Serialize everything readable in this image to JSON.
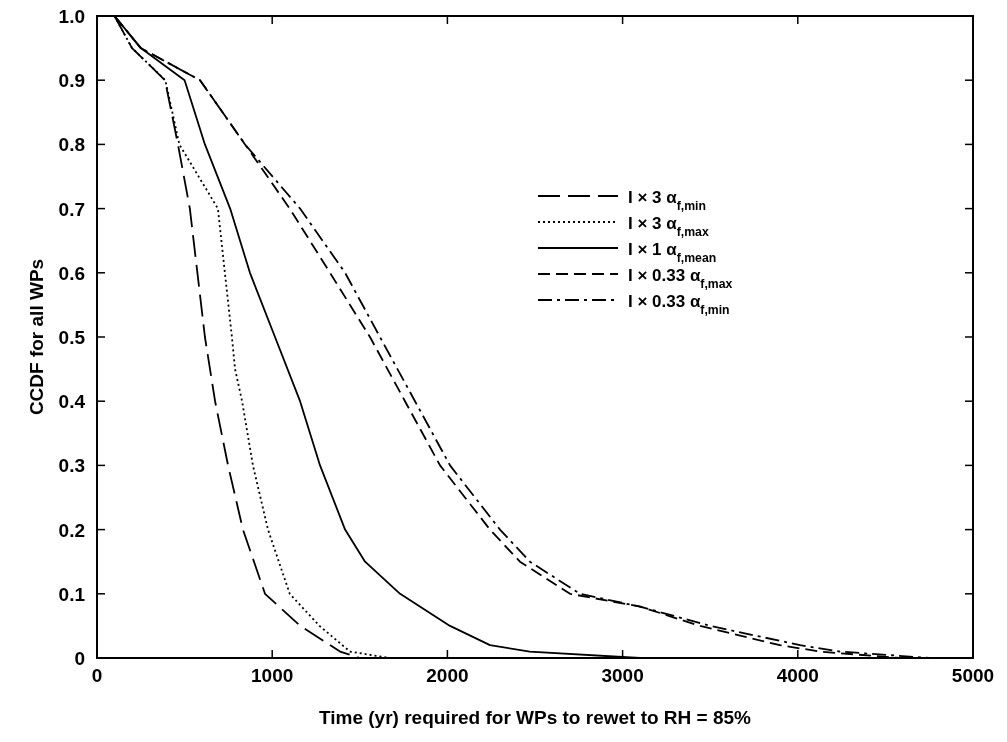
{
  "chart_data": {
    "type": "line",
    "xlabel": "Time (yr) required for WPs to rewet to RH = 85%",
    "ylabel": "CCDF for all WPs",
    "xlim": [
      0,
      5000
    ],
    "ylim": [
      0,
      1
    ],
    "xticks": [
      0,
      1000,
      2000,
      3000,
      4000,
      5000
    ],
    "yticks": [
      0,
      0.1,
      0.2,
      0.3,
      0.4,
      0.5,
      0.6,
      0.7,
      0.8,
      0.9,
      {
        "value": 1,
        "label": "1.0"
      }
    ],
    "grid": false,
    "legend": "right",
    "series": [
      {
        "name": "I × 3 α$_{f,min}$",
        "color": "#000000",
        "line_style": "longdash",
        "x": [
          100,
          200,
          388,
          462,
          530,
          616,
          674,
          748,
          833,
          959,
          1160,
          1387,
          1500
        ],
        "values": [
          1,
          0.95,
          0.9,
          0.8,
          0.7,
          0.5,
          0.4,
          0.3,
          0.2,
          0.1,
          0.05,
          0.01,
          0
        ]
      },
      {
        "name": "I × 3 α$_{f,max}$",
        "color": "#000000",
        "line_style": "dotted",
        "x": [
          100,
          200,
          390,
          470,
          690,
          730,
          770,
          788,
          828,
          890,
          976,
          1100,
          1270,
          1444,
          1670
        ],
        "values": [
          1,
          0.95,
          0.9,
          0.8,
          0.7,
          0.6,
          0.5,
          0.45,
          0.4,
          0.3,
          0.2,
          0.1,
          0.05,
          0.01,
          0
        ]
      },
      {
        "name": "I × 1 α$_{f,mean}$",
        "color": "#000000",
        "line_style": "solid",
        "x": [
          100,
          250,
          500,
          616,
          760,
          873,
          1016,
          1159,
          1273,
          1416,
          1530,
          1730,
          2015,
          2243,
          2470,
          3100
        ],
        "values": [
          1,
          0.95,
          0.9,
          0.8,
          0.7,
          0.6,
          0.5,
          0.4,
          0.3,
          0.2,
          0.15,
          0.1,
          0.05,
          0.02,
          0.01,
          0
        ]
      },
      {
        "name": "I × 0.33 α$_{f,max}$",
        "color": "#000000",
        "line_style": "dashed",
        "x": [
          100,
          250,
          588,
          845,
          1100,
          1330,
          1558,
          1758,
          1958,
          2243,
          2414,
          2700,
          3100,
          3442,
          3898,
          4127,
          4580
        ],
        "values": [
          1,
          0.95,
          0.9,
          0.8,
          0.7,
          0.6,
          0.5,
          0.4,
          0.3,
          0.2,
          0.15,
          0.1,
          0.08,
          0.05,
          0.02,
          0.01,
          0
        ]
      },
      {
        "name": "I × 0.33 α$_{f,min}$",
        "color": "#000000",
        "line_style": "dashdot",
        "x": [
          100,
          250,
          588,
          845,
          1159,
          1416,
          1615,
          1815,
          2015,
          2300,
          2471,
          2757,
          3100,
          3500,
          4013,
          4241,
          4750
        ],
        "values": [
          1,
          0.95,
          0.9,
          0.8,
          0.7,
          0.6,
          0.5,
          0.4,
          0.3,
          0.2,
          0.15,
          0.1,
          0.08,
          0.05,
          0.02,
          0.01,
          0
        ]
      }
    ]
  }
}
